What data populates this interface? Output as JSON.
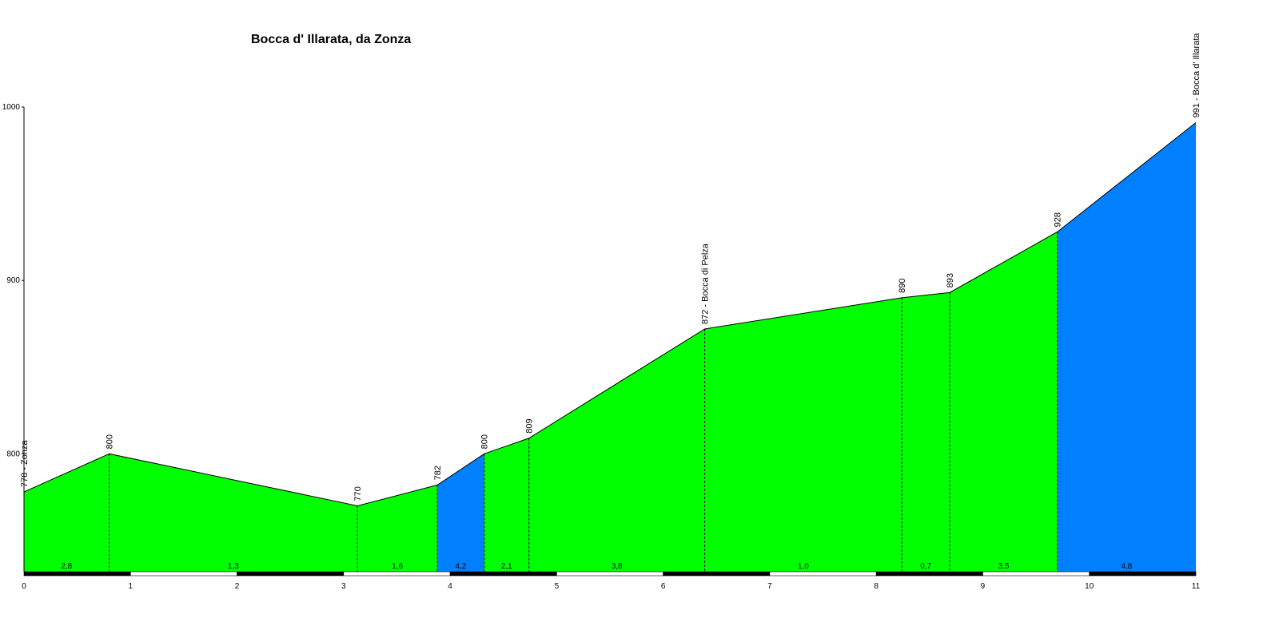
{
  "chart_data": {
    "type": "area",
    "title": "Bocca d' Illarata, da Zonza",
    "xlabel": "",
    "ylabel": "",
    "xlim": [
      0,
      11
    ],
    "ylim": [
      732,
      1000
    ],
    "x_ticks": [
      0,
      1,
      2,
      3,
      4,
      5,
      6,
      7,
      8,
      9,
      10,
      11
    ],
    "y_ticks": [
      800,
      900,
      1000
    ],
    "points": [
      {
        "x": 0.0,
        "y": 778,
        "label": "778 - Zonza"
      },
      {
        "x": 0.8,
        "y": 800,
        "label": "800"
      },
      {
        "x": 3.13,
        "y": 770,
        "label": "770"
      },
      {
        "x": 3.88,
        "y": 782,
        "label": "782"
      },
      {
        "x": 4.32,
        "y": 800,
        "label": "800"
      },
      {
        "x": 4.74,
        "y": 809,
        "label": "809"
      },
      {
        "x": 6.39,
        "y": 872,
        "label": "872 - Bocca di Pelza"
      },
      {
        "x": 8.24,
        "y": 890,
        "label": "890"
      },
      {
        "x": 8.69,
        "y": 893,
        "label": "893"
      },
      {
        "x": 9.7,
        "y": 928,
        "label": "928"
      },
      {
        "x": 11.0,
        "y": 991,
        "label": "991 - Bocca d' Illarata"
      }
    ],
    "segments": [
      {
        "from": 0.0,
        "to": 0.8,
        "gradient": "2,8",
        "color": "#00ff00"
      },
      {
        "from": 0.8,
        "to": 3.13,
        "gradient": "1,3",
        "color": "#00ff00"
      },
      {
        "from": 3.13,
        "to": 3.88,
        "gradient": "1,6",
        "color": "#00ff00"
      },
      {
        "from": 3.88,
        "to": 4.32,
        "gradient": "4,2",
        "color": "#0080ff"
      },
      {
        "from": 4.32,
        "to": 4.74,
        "gradient": "2,1",
        "color": "#00ff00"
      },
      {
        "from": 4.74,
        "to": 6.39,
        "gradient": "3,8",
        "color": "#00ff00"
      },
      {
        "from": 6.39,
        "to": 8.24,
        "gradient": "1,0",
        "color": "#00ff00"
      },
      {
        "from": 8.24,
        "to": 8.69,
        "gradient": "0,7",
        "color": "#00ff00"
      },
      {
        "from": 8.69,
        "to": 9.7,
        "gradient": "3,5",
        "color": "#00ff00"
      },
      {
        "from": 9.7,
        "to": 11.0,
        "gradient": "4,8",
        "color": "#0080ff"
      }
    ],
    "grid": false,
    "legend": "none"
  }
}
